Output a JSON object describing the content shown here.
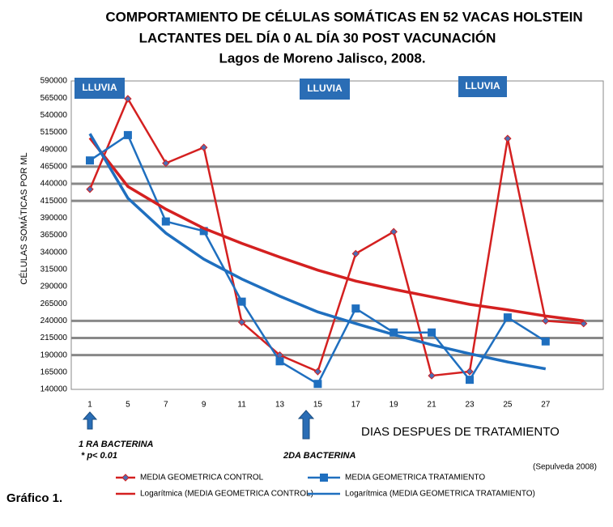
{
  "chart_data": {
    "type": "line",
    "title": [
      "COMPORTAMIENTO DE CÉLULAS SOMÁTICAS EN 52 VACAS  HOLSTEIN",
      "LACTANTES  DEL  DÍA 0 AL DÍA 30 POST VACUNACIÓN",
      "Lagos de Moreno Jalisco, 2008."
    ],
    "x_label": "DIAS DESPUES DE TRATAMIENTO",
    "y_label": "CÉLULAS SOMÁTICAS POR ML",
    "categories": [
      "1",
      "5",
      "7",
      "9",
      "11",
      "13",
      "15",
      "17",
      "19",
      "21",
      "23",
      "25",
      "27",
      null
    ],
    "series": [
      {
        "name": "MEDIA GEOMETRICA CONTROL",
        "color": "#d42020",
        "marker": "diamond",
        "values": [
          432000,
          564000,
          470000,
          493000,
          238000,
          190000,
          166000,
          338000,
          370000,
          160000,
          166000,
          506000,
          240000,
          236000
        ]
      },
      {
        "name": "MEDIA GEOMETRICA TRATAMIENTO",
        "color": "#1f6fbf",
        "marker": "square",
        "values": [
          474000,
          511000,
          385000,
          371000,
          268000,
          181000,
          148000,
          258000,
          223000,
          223000,
          154000,
          245000,
          210000,
          null
        ]
      },
      {
        "name": "Logarítmica (MEDIA GEOMETRICA CONTROL)",
        "color": "#d42020",
        "marker": "none",
        "values": [
          507000,
          436000,
          403000,
          375000,
          353000,
          333000,
          314000,
          298000,
          286000,
          275000,
          264000,
          256000,
          247000,
          240000
        ]
      },
      {
        "name": "Logarítmica (MEDIA GEOMETRICA TRATAMIENTO)",
        "color": "#1f6fbf",
        "marker": "none",
        "values": [
          513000,
          419000,
          368000,
          330000,
          301000,
          276000,
          253000,
          236000,
          220000,
          205000,
          192000,
          180000,
          170000,
          null
        ]
      }
    ],
    "ylim": [
      140000,
      590000
    ],
    "yticks": [
      140000,
      165000,
      190000,
      215000,
      240000,
      265000,
      290000,
      315000,
      340000,
      365000,
      390000,
      415000,
      440000,
      465000,
      490000,
      515000,
      540000,
      565000,
      590000
    ],
    "grid_lines": [
      190000,
      215000,
      240000,
      415000,
      440000,
      465000
    ],
    "annotations": {
      "rain": [
        "LLUVIA",
        "LLUVIA",
        "LLUVIA"
      ],
      "first": "1 RA BACTERINA",
      "significance": "* p< 0.01",
      "second": "2DA BACTERINA"
    },
    "source": "(Sepulveda 2008)",
    "figure_label": "Gráfico 1."
  }
}
